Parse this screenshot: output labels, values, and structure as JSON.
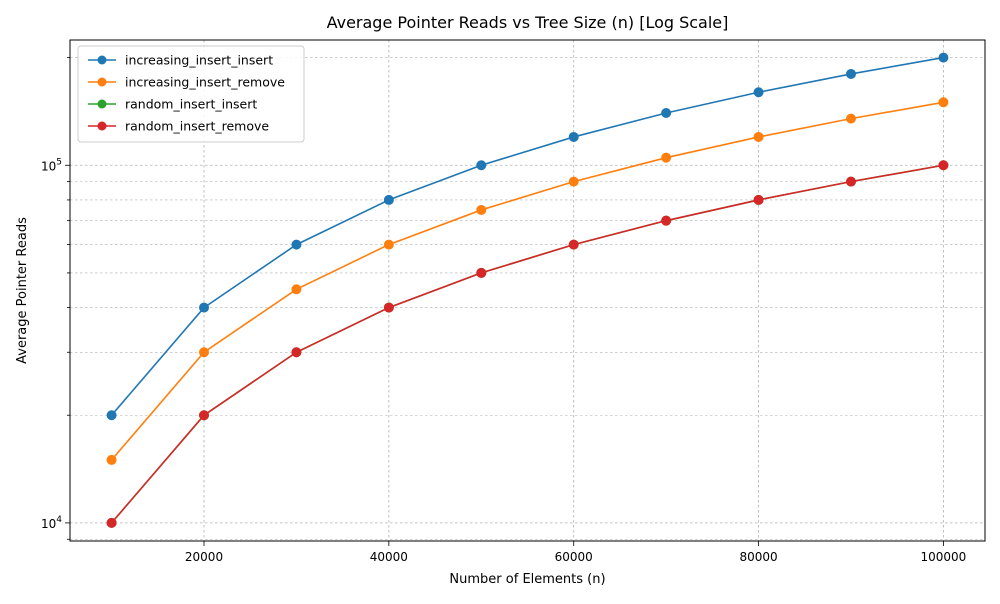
{
  "chart_data": {
    "type": "line",
    "title": "Average Pointer Reads vs Tree Size (n) [Log Scale]",
    "xlabel": "Number of Elements (n)",
    "ylabel": "Average Pointer Reads",
    "x": [
      10000,
      20000,
      30000,
      40000,
      50000,
      60000,
      70000,
      80000,
      90000,
      100000
    ],
    "xlim": [
      5500,
      104500
    ],
    "ylim": [
      8900,
      224000
    ],
    "yscale": "log",
    "xticks": [
      20000,
      40000,
      60000,
      80000,
      100000
    ],
    "xtick_labels": [
      "20000",
      "40000",
      "60000",
      "80000",
      "100000"
    ],
    "yticks": [
      10000,
      100000
    ],
    "ytick_labels": [
      {
        "base": "10",
        "exp": "4"
      },
      {
        "base": "10",
        "exp": "5"
      }
    ],
    "grid": true,
    "legend_position": "top-left",
    "series": [
      {
        "name": "increasing_insert_insert",
        "color": "#1f77b4",
        "values": [
          20000,
          40000,
          60000,
          80000,
          100000,
          120000,
          140000,
          160000,
          180000,
          200000
        ]
      },
      {
        "name": "increasing_insert_remove",
        "color": "#ff7f0e",
        "values": [
          15000,
          30000,
          45000,
          60000,
          75000,
          90000,
          105000,
          120000,
          135000,
          150000
        ]
      },
      {
        "name": "random_insert_insert",
        "color": "#2ca02c",
        "values": [
          10000,
          20000,
          30000,
          40000,
          50000,
          60000,
          70000,
          80000,
          90000,
          100000
        ]
      },
      {
        "name": "random_insert_remove",
        "color": "#d62728",
        "values": [
          10000,
          20000,
          30000,
          40000,
          50000,
          60000,
          70000,
          80000,
          90000,
          100000
        ]
      }
    ]
  }
}
